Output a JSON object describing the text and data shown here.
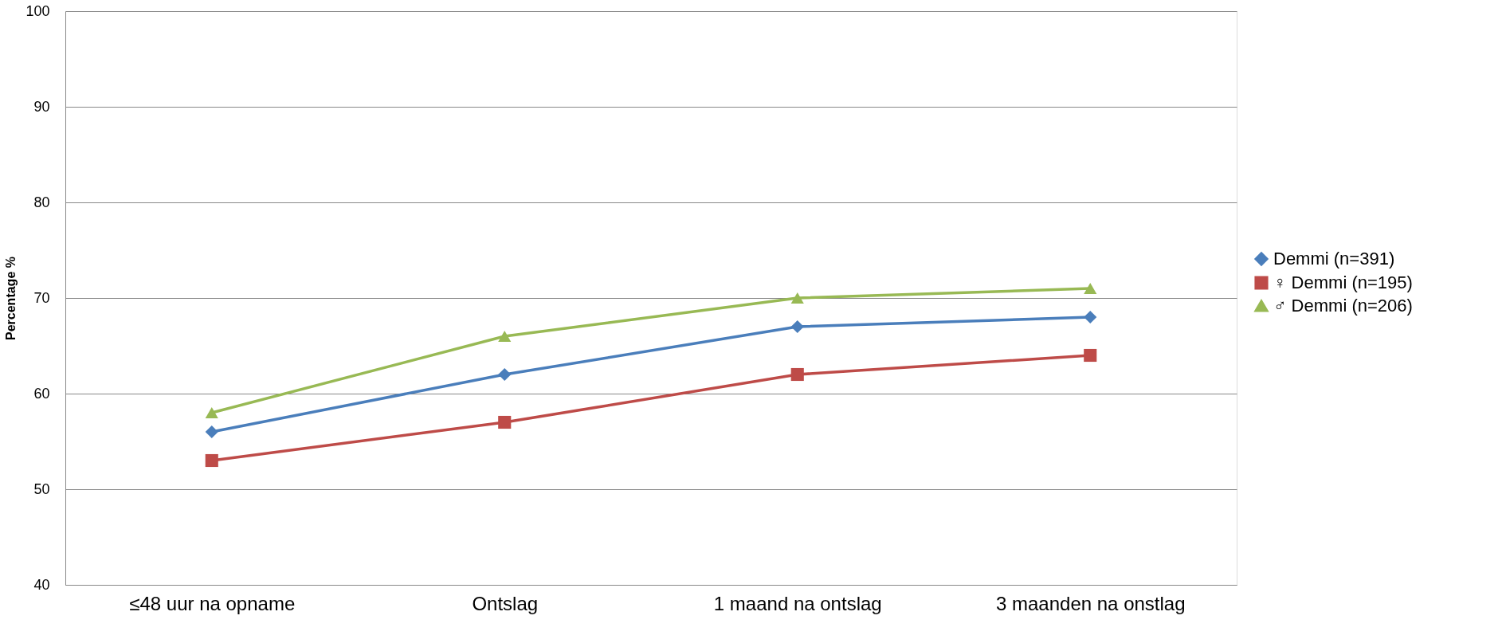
{
  "chart_data": {
    "type": "line",
    "ylabel": "Percentage %",
    "categories": [
      "≤48 uur na opname",
      "Ontslag",
      "1 maand na ontslag",
      "3 maanden na onstlag"
    ],
    "series": [
      {
        "name": "Demmi (n=391)",
        "color": "#4a7ebb",
        "marker": "diamond",
        "values": [
          56,
          62,
          67,
          68
        ]
      },
      {
        "name": "♀ Demmi (n=195)",
        "color": "#be4b48",
        "marker": "square",
        "values": [
          53,
          57,
          62,
          64
        ]
      },
      {
        "name": "♂ Demmi (n=206)",
        "color": "#98b954",
        "marker": "triangle",
        "values": [
          58,
          66,
          70,
          71
        ]
      }
    ],
    "ylim": [
      40,
      100
    ],
    "yticks": [
      40,
      50,
      60,
      70,
      80,
      90,
      100
    ],
    "grid": "y",
    "legend": "right",
    "line_style": "solid"
  }
}
